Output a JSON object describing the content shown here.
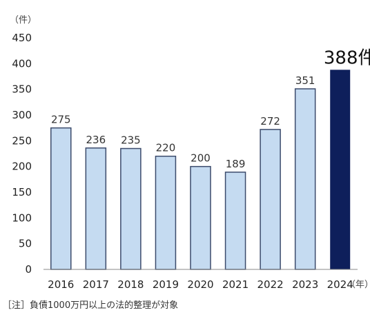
{
  "chart_data": {
    "type": "bar",
    "y_unit_label": "（件）",
    "x_unit_label": "（年）",
    "categories": [
      "2016",
      "2017",
      "2018",
      "2019",
      "2020",
      "2021",
      "2022",
      "2023",
      "2024"
    ],
    "values": [
      275,
      236,
      235,
      220,
      200,
      189,
      272,
      351,
      388
    ],
    "data_labels": [
      "275",
      "236",
      "235",
      "220",
      "200",
      "189",
      "272",
      "351",
      "388件"
    ],
    "highlight_index": 8,
    "ylim": [
      0,
      450
    ],
    "yticks": [
      "0",
      "50",
      "100",
      "150",
      "200",
      "250",
      "300",
      "350",
      "400",
      "450"
    ],
    "grid": false,
    "colors": {
      "bar": "#c5dbf1",
      "bar_edge": "#3b4a6b",
      "highlight": "#0e1f5b",
      "axis": "#888888"
    }
  },
  "footnote": "［注］負債1000万円以上の法的整理が対象"
}
